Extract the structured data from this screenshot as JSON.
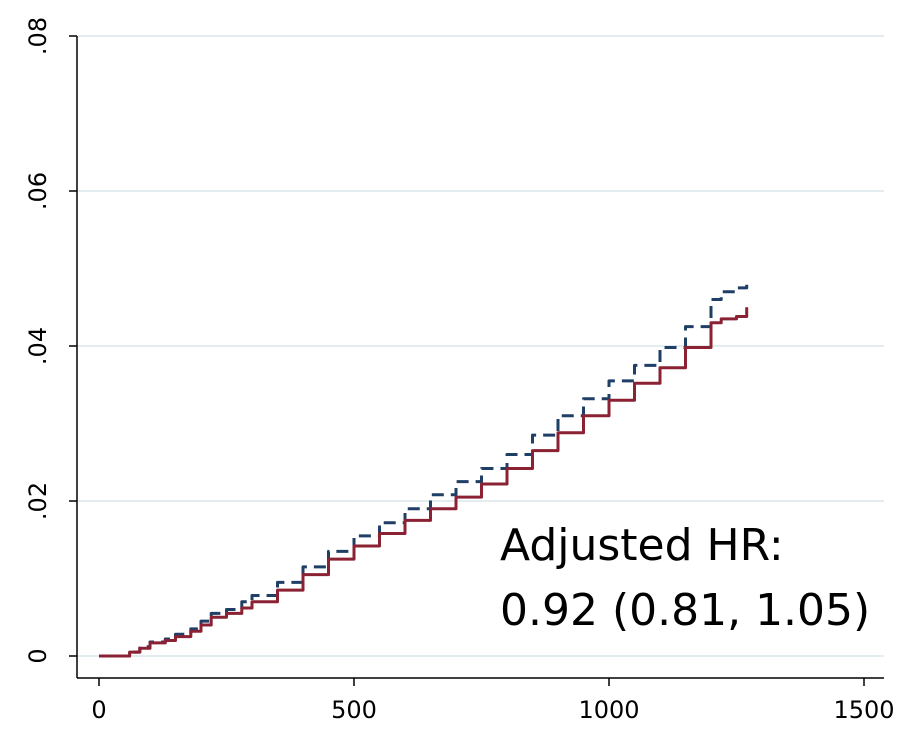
{
  "chart_data": {
    "type": "line",
    "title": "",
    "xlabel": "",
    "ylabel": "",
    "xlim": [
      0,
      1500
    ],
    "ylim": [
      0,
      0.08
    ],
    "grid": true,
    "x_ticks": [
      {
        "value": 0,
        "label": "0"
      },
      {
        "value": 500,
        "label": "500"
      },
      {
        "value": 1000,
        "label": "1000"
      },
      {
        "value": 1500,
        "label": "1500"
      }
    ],
    "y_ticks": [
      {
        "value": 0,
        "label": "0"
      },
      {
        "value": 0.02,
        "label": ".02"
      },
      {
        "value": 0.04,
        "label": ".04"
      },
      {
        "value": 0.06,
        "label": ".06"
      },
      {
        "value": 0.08,
        "label": ".08"
      }
    ],
    "series": [
      {
        "style": "dashed",
        "color": "#1f3f66",
        "x": [
          0,
          30,
          60,
          80,
          100,
          130,
          150,
          180,
          200,
          220,
          250,
          280,
          300,
          350,
          400,
          450,
          500,
          550,
          600,
          650,
          700,
          750,
          800,
          850,
          900,
          950,
          1000,
          1050,
          1100,
          1150,
          1200,
          1220,
          1250,
          1270
        ],
        "y": [
          0,
          0,
          0.0005,
          0.0012,
          0.0018,
          0.0022,
          0.0028,
          0.0035,
          0.0045,
          0.0055,
          0.006,
          0.007,
          0.0078,
          0.0095,
          0.0115,
          0.0135,
          0.0155,
          0.0172,
          0.019,
          0.0208,
          0.0225,
          0.0242,
          0.026,
          0.0285,
          0.031,
          0.0332,
          0.0355,
          0.0375,
          0.0398,
          0.0425,
          0.046,
          0.047,
          0.0475,
          0.048
        ]
      },
      {
        "style": "solid",
        "color": "#8b2234",
        "x": [
          0,
          30,
          60,
          80,
          100,
          130,
          150,
          180,
          200,
          220,
          250,
          280,
          300,
          350,
          400,
          450,
          500,
          550,
          600,
          650,
          700,
          750,
          800,
          850,
          900,
          950,
          1000,
          1050,
          1100,
          1150,
          1200,
          1220,
          1250,
          1270
        ],
        "y": [
          0,
          0,
          0.0005,
          0.001,
          0.0017,
          0.002,
          0.0025,
          0.0032,
          0.004,
          0.005,
          0.0055,
          0.0062,
          0.007,
          0.0085,
          0.0105,
          0.0125,
          0.0142,
          0.0158,
          0.0175,
          0.019,
          0.0205,
          0.0222,
          0.0242,
          0.0265,
          0.0288,
          0.031,
          0.033,
          0.0352,
          0.0372,
          0.0398,
          0.043,
          0.0435,
          0.0438,
          0.045
        ]
      }
    ],
    "annotations": [
      "Adjusted HR:",
      "0.92 (0.81, 1.05)"
    ]
  }
}
